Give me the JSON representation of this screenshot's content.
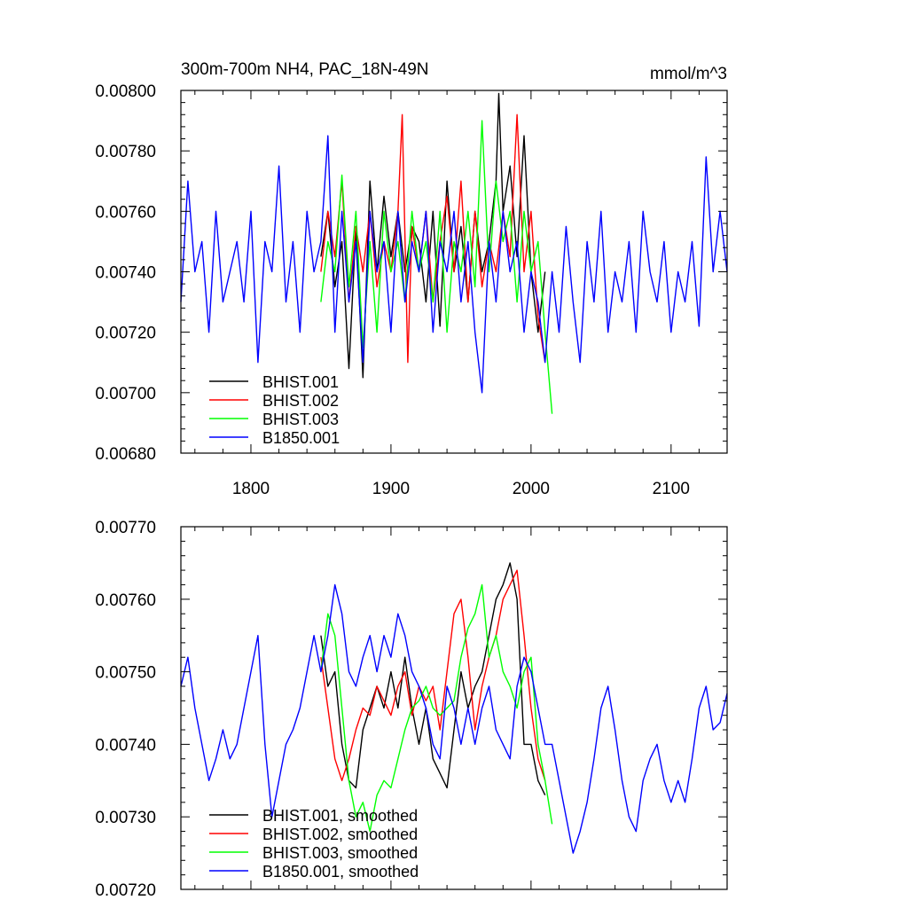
{
  "chart_data": [
    {
      "type": "line",
      "title": "300m-700m NH4, PAC_18N-49N",
      "units": "mmol/m^3",
      "xlim": [
        1750,
        2140
      ],
      "ylim": [
        0.0068,
        0.008
      ],
      "xticks": [
        1800,
        1900,
        2000,
        2100
      ],
      "xtick_labels": [
        "1800",
        "1900",
        "2000",
        "2100"
      ],
      "yticks": [
        0.0068,
        0.007,
        0.0072,
        0.0074,
        0.0076,
        0.0078,
        0.008
      ],
      "ytick_labels": [
        "0.00680",
        "0.00700",
        "0.00720",
        "0.00740",
        "0.00760",
        "0.00780",
        "0.00800"
      ],
      "legend_position": "bottom-left",
      "series": [
        {
          "name": "BHIST.001",
          "color": "#000000",
          "x": [
            1850,
            1855,
            1860,
            1865,
            1870,
            1875,
            1880,
            1885,
            1890,
            1895,
            1900,
            1905,
            1910,
            1915,
            1920,
            1925,
            1930,
            1935,
            1940,
            1945,
            1950,
            1955,
            1960,
            1965,
            1970,
            1975,
            1977,
            1980,
            1985,
            1990,
            1995,
            2000,
            2005,
            2010
          ],
          "values": [
            0.00745,
            0.0076,
            0.00735,
            0.0075,
            0.00708,
            0.00755,
            0.00705,
            0.0077,
            0.0074,
            0.00765,
            0.00745,
            0.0076,
            0.0074,
            0.00755,
            0.0075,
            0.0073,
            0.0076,
            0.00722,
            0.0077,
            0.0074,
            0.00755,
            0.0073,
            0.0076,
            0.0074,
            0.0075,
            0.0077,
            0.00799,
            0.0076,
            0.00775,
            0.00745,
            0.00785,
            0.0074,
            0.0072,
            0.0074
          ]
        },
        {
          "name": "BHIST.002",
          "color": "#ff0000",
          "x": [
            1850,
            1855,
            1860,
            1865,
            1870,
            1875,
            1880,
            1885,
            1890,
            1895,
            1900,
            1905,
            1908,
            1912,
            1915,
            1920,
            1925,
            1930,
            1935,
            1940,
            1945,
            1950,
            1955,
            1960,
            1965,
            1970,
            1975,
            1980,
            1985,
            1990,
            1995,
            2000,
            2005,
            2010
          ],
          "values": [
            0.0074,
            0.0076,
            0.00745,
            0.0077,
            0.0073,
            0.00755,
            0.0074,
            0.0076,
            0.00735,
            0.0075,
            0.0074,
            0.0076,
            0.00792,
            0.0071,
            0.00755,
            0.0074,
            0.0076,
            0.0073,
            0.0075,
            0.00765,
            0.0074,
            0.0077,
            0.0073,
            0.0076,
            0.00735,
            0.0075,
            0.0074,
            0.0076,
            0.00745,
            0.00792,
            0.0074,
            0.0076,
            0.00725,
            0.0071
          ]
        },
        {
          "name": "BHIST.003",
          "color": "#00ff00",
          "x": [
            1850,
            1855,
            1860,
            1865,
            1870,
            1875,
            1880,
            1885,
            1890,
            1895,
            1900,
            1905,
            1910,
            1915,
            1920,
            1925,
            1930,
            1935,
            1940,
            1945,
            1950,
            1955,
            1960,
            1965,
            1970,
            1975,
            1980,
            1985,
            1990,
            1995,
            2000,
            2005,
            2010,
            2015
          ],
          "values": [
            0.0073,
            0.0075,
            0.0074,
            0.00772,
            0.00735,
            0.0076,
            0.00715,
            0.0075,
            0.0072,
            0.0076,
            0.0074,
            0.0075,
            0.0073,
            0.0076,
            0.0074,
            0.0075,
            0.0073,
            0.0076,
            0.0072,
            0.0075,
            0.0074,
            0.0076,
            0.00735,
            0.0079,
            0.0074,
            0.0077,
            0.0075,
            0.0076,
            0.0073,
            0.0076,
            0.0074,
            0.0075,
            0.0072,
            0.00693
          ]
        },
        {
          "name": "B1850.001",
          "color": "#0000ff",
          "x": [
            1750,
            1755,
            1760,
            1765,
            1770,
            1775,
            1780,
            1785,
            1790,
            1795,
            1800,
            1805,
            1810,
            1815,
            1820,
            1825,
            1830,
            1835,
            1840,
            1845,
            1850,
            1855,
            1860,
            1865,
            1870,
            1875,
            1880,
            1885,
            1890,
            1895,
            1900,
            1905,
            1910,
            1915,
            1920,
            1925,
            1930,
            1935,
            1940,
            1945,
            1950,
            1955,
            1960,
            1965,
            1970,
            1975,
            1980,
            1985,
            1990,
            1995,
            2000,
            2005,
            2010,
            2015,
            2020,
            2025,
            2030,
            2035,
            2040,
            2045,
            2050,
            2055,
            2060,
            2065,
            2070,
            2075,
            2080,
            2085,
            2090,
            2095,
            2100,
            2105,
            2110,
            2115,
            2120,
            2125,
            2130,
            2135,
            2140
          ],
          "values": [
            0.0073,
            0.0077,
            0.0074,
            0.0075,
            0.0072,
            0.0076,
            0.0073,
            0.0074,
            0.0075,
            0.0073,
            0.0076,
            0.0071,
            0.0075,
            0.0074,
            0.00775,
            0.0073,
            0.0075,
            0.0072,
            0.0076,
            0.0074,
            0.0075,
            0.00785,
            0.0072,
            0.0076,
            0.0073,
            0.0075,
            0.0071,
            0.0076,
            0.0074,
            0.0075,
            0.0072,
            0.0076,
            0.0073,
            0.0075,
            0.0074,
            0.0076,
            0.0072,
            0.0075,
            0.0074,
            0.0076,
            0.0073,
            0.0075,
            0.0072,
            0.007,
            0.0075,
            0.0073,
            0.0076,
            0.0074,
            0.0075,
            0.0072,
            0.0074,
            0.0073,
            0.0071,
            0.0074,
            0.0072,
            0.00755,
            0.0073,
            0.0071,
            0.0075,
            0.0073,
            0.0076,
            0.0072,
            0.0074,
            0.0073,
            0.0075,
            0.0072,
            0.0076,
            0.0074,
            0.0073,
            0.0075,
            0.0072,
            0.0074,
            0.0073,
            0.0075,
            0.00722,
            0.00778,
            0.0074,
            0.0076,
            0.0074
          ]
        }
      ]
    },
    {
      "type": "line",
      "title": "",
      "xlim": [
        1750,
        2140
      ],
      "ylim": [
        0.0072,
        0.0077
      ],
      "xticks": [
        1800,
        1900,
        2000,
        2100
      ],
      "yticks": [
        0.0072,
        0.0073,
        0.0074,
        0.0075,
        0.0076,
        0.0077
      ],
      "ytick_labels": [
        "0.00720",
        "0.00730",
        "0.00740",
        "0.00750",
        "0.00760",
        "0.00770"
      ],
      "legend_position": "bottom-left",
      "series": [
        {
          "name": "BHIST.001, smoothed",
          "color": "#000000",
          "x": [
            1850,
            1855,
            1860,
            1865,
            1870,
            1875,
            1880,
            1885,
            1890,
            1895,
            1900,
            1905,
            1910,
            1915,
            1920,
            1925,
            1930,
            1935,
            1940,
            1945,
            1950,
            1955,
            1960,
            1965,
            1970,
            1975,
            1980,
            1985,
            1990,
            1995,
            2000,
            2005,
            2010
          ],
          "values": [
            0.00755,
            0.00748,
            0.0075,
            0.0074,
            0.00735,
            0.00734,
            0.00742,
            0.00745,
            0.00748,
            0.00745,
            0.0075,
            0.00745,
            0.00752,
            0.00745,
            0.0074,
            0.00745,
            0.00738,
            0.00736,
            0.00734,
            0.00742,
            0.0075,
            0.00745,
            0.00748,
            0.0075,
            0.00755,
            0.0076,
            0.00762,
            0.00765,
            0.0076,
            0.0074,
            0.0074,
            0.00735,
            0.00733
          ]
        },
        {
          "name": "BHIST.002, smoothed",
          "color": "#ff0000",
          "x": [
            1850,
            1855,
            1860,
            1865,
            1870,
            1875,
            1880,
            1885,
            1890,
            1895,
            1900,
            1905,
            1910,
            1915,
            1920,
            1925,
            1930,
            1935,
            1940,
            1945,
            1950,
            1955,
            1960,
            1965,
            1970,
            1975,
            1980,
            1985,
            1990,
            1995,
            2000,
            2005,
            2010
          ],
          "values": [
            0.00752,
            0.00745,
            0.00738,
            0.00735,
            0.00738,
            0.00742,
            0.00745,
            0.00744,
            0.00748,
            0.00746,
            0.00744,
            0.00748,
            0.0075,
            0.00744,
            0.00748,
            0.00746,
            0.00748,
            0.00742,
            0.0075,
            0.00758,
            0.0076,
            0.00752,
            0.00742,
            0.00748,
            0.00752,
            0.00755,
            0.0076,
            0.00762,
            0.00764,
            0.00755,
            0.00745,
            0.00738,
            0.00735
          ]
        },
        {
          "name": "BHIST.003, smoothed",
          "color": "#00ff00",
          "x": [
            1850,
            1855,
            1860,
            1865,
            1870,
            1875,
            1880,
            1885,
            1890,
            1895,
            1900,
            1905,
            1910,
            1915,
            1920,
            1925,
            1930,
            1935,
            1940,
            1945,
            1950,
            1955,
            1960,
            1965,
            1970,
            1975,
            1980,
            1985,
            1990,
            1995,
            2000,
            2005,
            2010,
            2015
          ],
          "values": [
            0.0075,
            0.00758,
            0.00755,
            0.00745,
            0.00735,
            0.0073,
            0.00732,
            0.00728,
            0.00733,
            0.00735,
            0.00734,
            0.00738,
            0.00742,
            0.00745,
            0.00746,
            0.00748,
            0.00745,
            0.00744,
            0.00745,
            0.00746,
            0.00752,
            0.00756,
            0.00758,
            0.00762,
            0.00752,
            0.00755,
            0.0075,
            0.00748,
            0.00745,
            0.0075,
            0.00752,
            0.0074,
            0.00735,
            0.00729
          ]
        },
        {
          "name": "B1850.001, smoothed",
          "color": "#0000ff",
          "x": [
            1750,
            1755,
            1760,
            1765,
            1770,
            1775,
            1780,
            1785,
            1790,
            1795,
            1800,
            1805,
            1810,
            1815,
            1820,
            1825,
            1830,
            1835,
            1840,
            1845,
            1850,
            1855,
            1860,
            1865,
            1870,
            1875,
            1880,
            1885,
            1890,
            1895,
            1900,
            1905,
            1910,
            1915,
            1920,
            1925,
            1930,
            1935,
            1940,
            1945,
            1950,
            1955,
            1960,
            1965,
            1970,
            1975,
            1980,
            1985,
            1990,
            1995,
            2000,
            2005,
            2010,
            2015,
            2020,
            2025,
            2030,
            2035,
            2040,
            2045,
            2050,
            2055,
            2060,
            2065,
            2070,
            2075,
            2080,
            2085,
            2090,
            2095,
            2100,
            2105,
            2110,
            2115,
            2120,
            2125,
            2130,
            2135,
            2140
          ],
          "values": [
            0.00748,
            0.00752,
            0.00745,
            0.0074,
            0.00735,
            0.00738,
            0.00742,
            0.00738,
            0.0074,
            0.00745,
            0.0075,
            0.00755,
            0.0074,
            0.0073,
            0.00735,
            0.0074,
            0.00742,
            0.00745,
            0.0075,
            0.00755,
            0.0075,
            0.00755,
            0.00762,
            0.00758,
            0.0075,
            0.00748,
            0.00752,
            0.00755,
            0.0075,
            0.00755,
            0.00752,
            0.00758,
            0.00755,
            0.0075,
            0.00748,
            0.00745,
            0.0074,
            0.00738,
            0.00748,
            0.00745,
            0.0074,
            0.00745,
            0.0074,
            0.00745,
            0.00748,
            0.00742,
            0.0074,
            0.00738,
            0.00748,
            0.00752,
            0.0075,
            0.00745,
            0.0074,
            0.0074,
            0.00735,
            0.0073,
            0.00725,
            0.00728,
            0.00732,
            0.00738,
            0.00745,
            0.00748,
            0.00742,
            0.00735,
            0.0073,
            0.00728,
            0.00735,
            0.00738,
            0.0074,
            0.00735,
            0.00732,
            0.00735,
            0.00732,
            0.00738,
            0.00745,
            0.00748,
            0.00742,
            0.00743,
            0.00747
          ]
        }
      ]
    }
  ]
}
